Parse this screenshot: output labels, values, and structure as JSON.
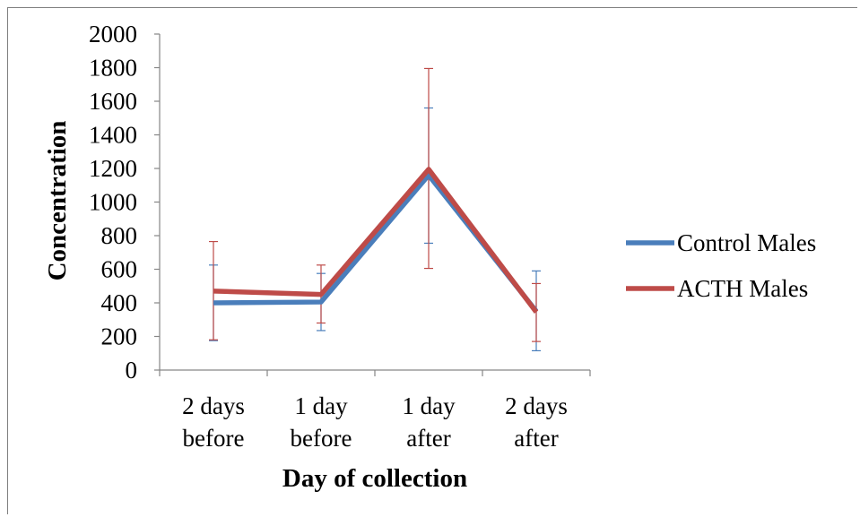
{
  "chart_data": {
    "type": "line",
    "categories": [
      [
        "2 days",
        "before"
      ],
      [
        "1 day",
        "before"
      ],
      [
        "1 day",
        "after"
      ],
      [
        "2 days",
        "after"
      ]
    ],
    "xlabel": "Day of collection",
    "ylabel": "Concentration",
    "ylim": [
      0,
      2000
    ],
    "yticks": [
      0,
      200,
      400,
      600,
      800,
      1000,
      1200,
      1400,
      1600,
      1800,
      2000
    ],
    "grid": false,
    "legend_position": "right",
    "series": [
      {
        "name": "Control Males",
        "color": "#4a7ebb",
        "values": [
          400,
          405,
          1160,
          350
        ],
        "err_low": [
          175,
          235,
          755,
          115
        ],
        "err_high": [
          625,
          575,
          1560,
          590
        ]
      },
      {
        "name": "ACTH Males",
        "color": "#be4b48",
        "values": [
          470,
          450,
          1195,
          345
        ],
        "err_low": [
          180,
          280,
          605,
          170
        ],
        "err_high": [
          765,
          625,
          1795,
          515
        ]
      }
    ]
  }
}
